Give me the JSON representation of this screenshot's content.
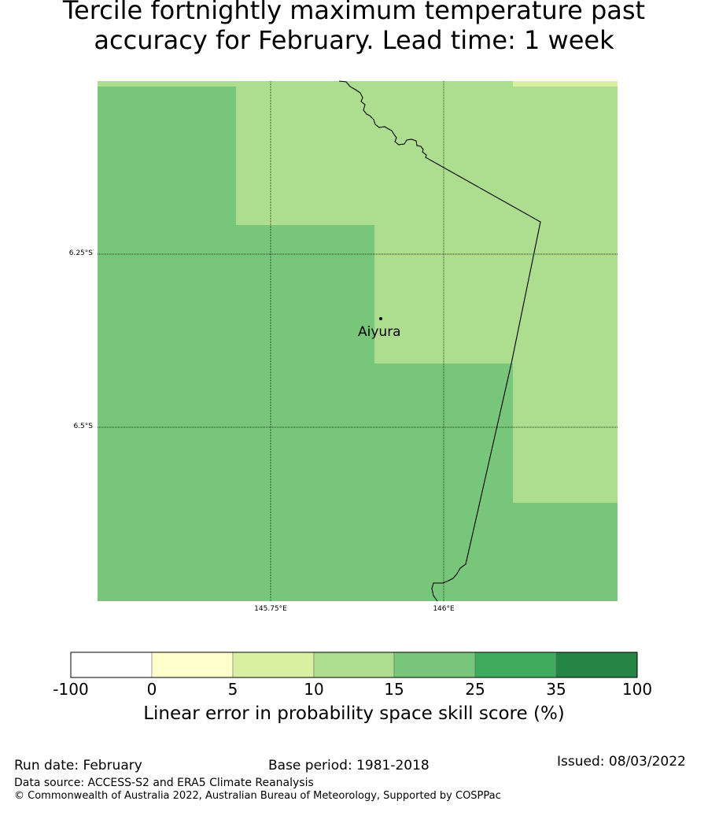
{
  "title_line1": "Tercile fortnightly maximum temperature past",
  "title_line2": "accuracy for February. Lead time: 1 week",
  "map": {
    "lat_labels": [
      "6.25°S",
      "6.5°S"
    ],
    "lon_labels": [
      "145.75°E",
      "146°E"
    ],
    "place": "Aiyura"
  },
  "colorbar": {
    "ticks": [
      "-100",
      "0",
      "5",
      "10",
      "15",
      "25",
      "35",
      "100"
    ],
    "colors": [
      "#ffffff",
      "#ffffcc",
      "#d9f0a3",
      "#addd8e",
      "#78c679",
      "#41ab5d",
      "#238443"
    ],
    "label": "Linear error in probability space skill score (%)"
  },
  "footer": {
    "run_date": "Run date: February",
    "base_period": "Base period: 1981-2018",
    "issued": "Issued: 08/03/2022",
    "data_source": "Data source: ACCESS-S2 and ERA5 Climate Reanalysis",
    "copyright": "© Commonwealth of Australia 2022, Australian Bureau of Meteorology, Supported by COSPPac"
  }
}
